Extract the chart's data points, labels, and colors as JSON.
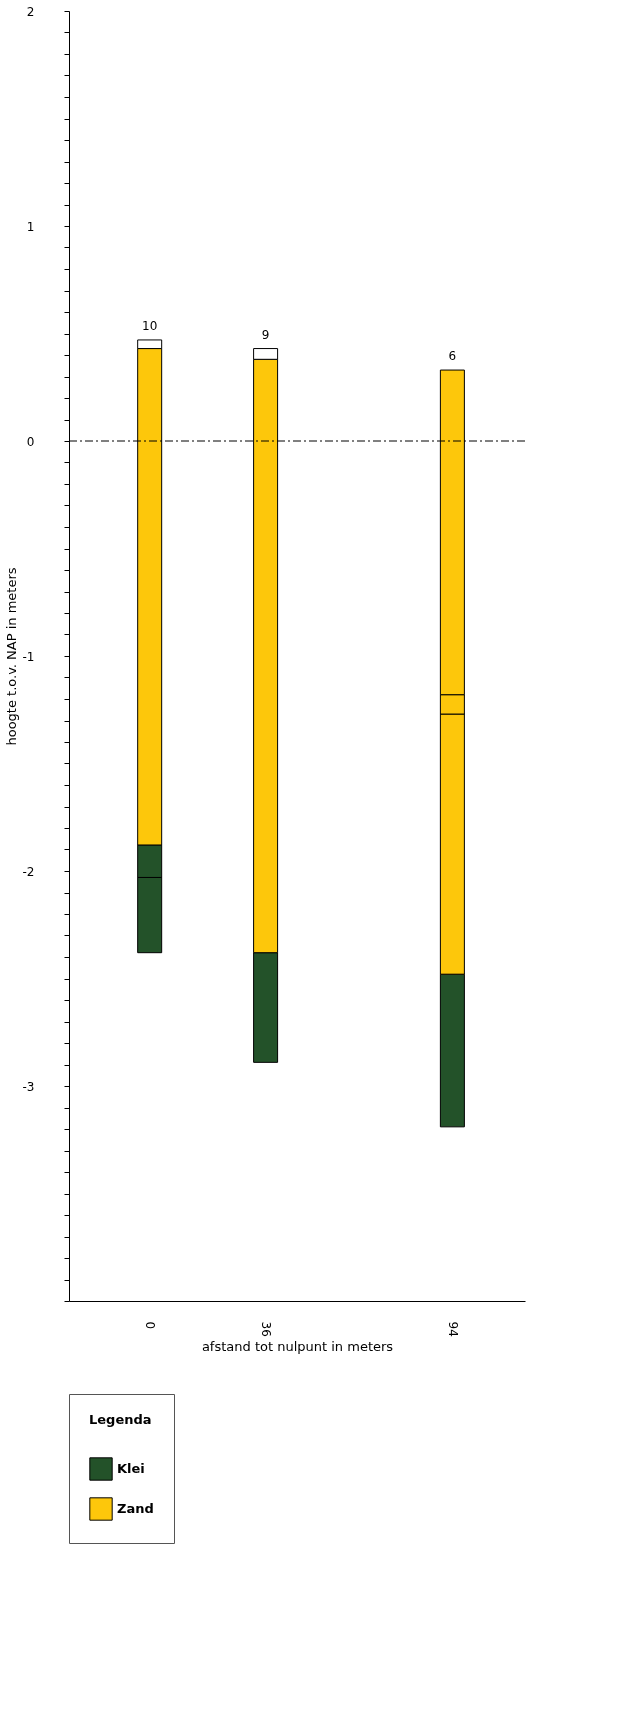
{
  "chart_data": {
    "type": "bar",
    "xlabel": "afstand tot nulpunt in meters",
    "ylabel": "hoogte t.o.v. NAP in meters",
    "legend_title": "Legenda",
    "legend": "bottom",
    "x": [
      0,
      36,
      94
    ],
    "xlim": [
      -23.5,
      115
    ],
    "xticks": [
      0,
      36,
      94
    ],
    "ylim": [
      -4,
      2
    ],
    "yticks": [
      {
        "value": -4,
        "label": null
      },
      {
        "value": -3.9,
        "label": null
      },
      {
        "value": -3.8,
        "label": null
      },
      {
        "value": -3.7,
        "label": null
      },
      {
        "value": -3.6,
        "label": null
      },
      {
        "value": -3.5,
        "label": null
      },
      {
        "value": -3.4,
        "label": null
      },
      {
        "value": -3.3,
        "label": null
      },
      {
        "value": -3.2,
        "label": null
      },
      {
        "value": -3.1,
        "label": null
      },
      -3,
      {
        "value": -2.9,
        "label": null
      },
      {
        "value": -2.8,
        "label": null
      },
      {
        "value": -2.7,
        "label": null
      },
      {
        "value": -2.6,
        "label": null
      },
      {
        "value": -2.5,
        "label": null
      },
      {
        "value": -2.4,
        "label": null
      },
      {
        "value": -2.3,
        "label": null
      },
      {
        "value": -2.2,
        "label": null
      },
      {
        "value": -2.1,
        "label": null
      },
      -2,
      {
        "value": -1.9,
        "label": null
      },
      {
        "value": -1.8,
        "label": null
      },
      {
        "value": -1.7,
        "label": null
      },
      {
        "value": -1.6,
        "label": null
      },
      {
        "value": -1.5,
        "label": null
      },
      {
        "value": -1.4,
        "label": null
      },
      {
        "value": -1.3,
        "label": null
      },
      {
        "value": -1.2,
        "label": null
      },
      {
        "value": -1.1,
        "label": null
      },
      -1,
      {
        "value": -0.9,
        "label": null
      },
      {
        "value": -0.8,
        "label": null
      },
      {
        "value": -0.7,
        "label": null
      },
      {
        "value": -0.6,
        "label": null
      },
      {
        "value": -0.5,
        "label": null
      },
      {
        "value": -0.4,
        "label": null
      },
      {
        "value": -0.3,
        "label": null
      },
      {
        "value": -0.2,
        "label": null
      },
      {
        "value": -0.1,
        "label": null
      },
      0,
      {
        "value": 0.1,
        "label": null
      },
      {
        "value": 0.2,
        "label": null
      },
      {
        "value": 0.3,
        "label": null
      },
      {
        "value": 0.4,
        "label": null
      },
      {
        "value": 0.5,
        "label": null
      },
      {
        "value": 0.6,
        "label": null
      },
      {
        "value": 0.7,
        "label": null
      },
      {
        "value": 0.8,
        "label": null
      },
      {
        "value": 0.9,
        "label": null
      },
      1,
      {
        "value": 1.1,
        "label": null
      },
      {
        "value": 1.2,
        "label": null
      },
      {
        "value": 1.3,
        "label": null
      },
      {
        "value": 1.4,
        "label": null
      },
      {
        "value": 1.5,
        "label": null
      },
      {
        "value": 1.6,
        "label": null
      },
      {
        "value": 1.7,
        "label": null
      },
      {
        "value": 1.8,
        "label": null
      },
      {
        "value": 1.9,
        "label": null
      },
      2
    ],
    "series": [
      {
        "name": "Klei",
        "color": "#235229",
        "base": [
          -2.38,
          -2.89,
          -3.19
        ],
        "values": [
          0.35,
          0.51,
          0.71
        ]
      },
      {
        "color": "#235229",
        "base": [
          -2.03,
          null,
          null
        ],
        "values": [
          0.15,
          null,
          null
        ]
      },
      {
        "name": "Zand",
        "color": "#fdc70b",
        "base": [
          -1.88,
          -2.38,
          -2.48
        ],
        "values": [
          2.31,
          2.76,
          1.21
        ]
      },
      {
        "color": "#fdc70b",
        "base": [
          null,
          null,
          -1.27
        ],
        "values": [
          null,
          null,
          0.09
        ]
      },
      {
        "color": "#fdc70b",
        "base": [
          null,
          null,
          -1.18
        ],
        "values": [
          null,
          null,
          1.51
        ]
      },
      {
        "color": "#ffffff",
        "base": [
          0.43,
          0.38,
          null
        ],
        "values": [
          0.04,
          0.05,
          null
        ]
      }
    ],
    "ref_lines": [
      {
        "axis": "y",
        "value": 0,
        "line_style": "dashed",
        "color": "#000000"
      }
    ],
    "annotations": [
      "10",
      "9",
      "6"
    ],
    "grid": false
  }
}
